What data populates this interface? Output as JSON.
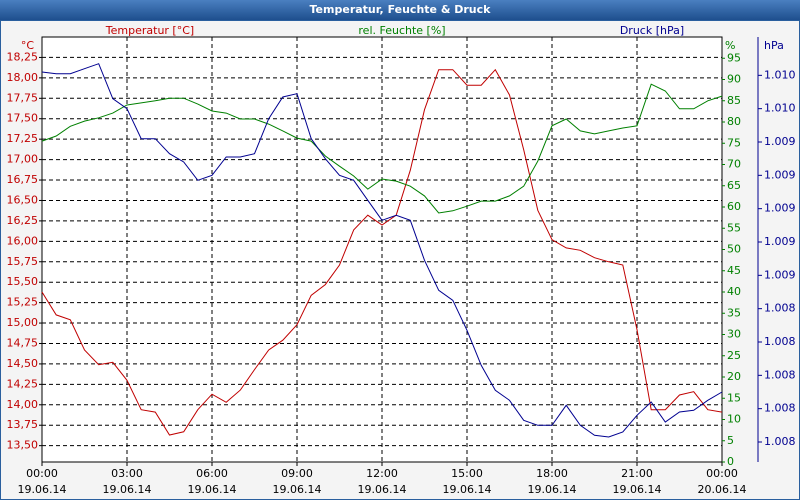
{
  "chart_data": {
    "type": "line",
    "title": "Temperatur, Feuchte & Druck",
    "y_unit": "°C",
    "y2_unit": "%",
    "y3_unit": "hPa",
    "grid": true,
    "x": [
      0,
      0.5,
      1,
      1.5,
      2,
      2.5,
      3,
      3.5,
      4,
      4.5,
      5,
      5.5,
      6,
      6.5,
      7,
      7.5,
      8,
      8.5,
      9,
      9.5,
      10,
      10.5,
      11,
      11.5,
      12,
      12.5,
      13,
      13.5,
      14,
      14.5,
      15,
      15.5,
      16,
      16.5,
      17,
      17.5,
      18,
      18.5,
      19,
      19.5,
      20,
      20.5,
      21,
      21.5,
      22,
      22.5,
      23,
      23.5,
      24
    ],
    "xlim": [
      0,
      24
    ],
    "xticks": [
      {
        "value": 0,
        "label": "00:00",
        "date": "19.06.14"
      },
      {
        "value": 3,
        "label": "03:00",
        "date": "19.06.14"
      },
      {
        "value": 6,
        "label": "06:00",
        "date": "19.06.14"
      },
      {
        "value": 9,
        "label": "09:00",
        "date": "19.06.14"
      },
      {
        "value": 12,
        "label": "12:00",
        "date": "19.06.14"
      },
      {
        "value": 15,
        "label": "15:00",
        "date": "19.06.14"
      },
      {
        "value": 18,
        "label": "18:00",
        "date": "19.06.14"
      },
      {
        "value": 21,
        "label": "21:00",
        "date": "19.06.14"
      },
      {
        "value": 24,
        "label": "00:00",
        "date": "20.06.14"
      }
    ],
    "ylim": [
      13.3,
      18.5
    ],
    "yticks": [
      {
        "value": 13.5,
        "label": "13,50"
      },
      {
        "value": 13.75,
        "label": "13,75"
      },
      {
        "value": 14,
        "label": "14,00"
      },
      {
        "value": 14.25,
        "label": "14,25"
      },
      {
        "value": 14.5,
        "label": "14,50"
      },
      {
        "value": 14.75,
        "label": "14,75"
      },
      {
        "value": 15,
        "label": "15,00"
      },
      {
        "value": 15.25,
        "label": "15,25"
      },
      {
        "value": 15.5,
        "label": "15,50"
      },
      {
        "value": 15.75,
        "label": "15,75"
      },
      {
        "value": 16,
        "label": "16,00"
      },
      {
        "value": 16.25,
        "label": "16,25"
      },
      {
        "value": 16.5,
        "label": "16,50"
      },
      {
        "value": 16.75,
        "label": "16,75"
      },
      {
        "value": 17,
        "label": "17,00"
      },
      {
        "value": 17.25,
        "label": "17,25"
      },
      {
        "value": 17.5,
        "label": "17,50"
      },
      {
        "value": 17.75,
        "label": "17,75"
      },
      {
        "value": 18,
        "label": "18,00"
      },
      {
        "value": 18.25,
        "label": "18,25"
      }
    ],
    "y2lim": [
      0,
      100
    ],
    "y2ticks": [
      0,
      5,
      10,
      15,
      20,
      25,
      30,
      35,
      40,
      45,
      50,
      55,
      60,
      65,
      70,
      75,
      80,
      85,
      90,
      95
    ],
    "y3lim": [
      1.00748,
      1.01003
    ],
    "y3ticks": [
      {
        "value": 1.0098,
        "label": "1.010"
      },
      {
        "value": 1.0096,
        "label": "1.010"
      },
      {
        "value": 1.0094,
        "label": "1.009"
      },
      {
        "value": 1.0092,
        "label": "1.009"
      },
      {
        "value": 1.009,
        "label": "1.009"
      },
      {
        "value": 1.0088,
        "label": "1.009"
      },
      {
        "value": 1.0086,
        "label": "1.009"
      },
      {
        "value": 1.0084,
        "label": "1.008"
      },
      {
        "value": 1.0082,
        "label": "1.008"
      },
      {
        "value": 1.008,
        "label": "1.008"
      },
      {
        "value": 1.0078,
        "label": "1.008"
      },
      {
        "value": 1.0076,
        "label": "1.008"
      }
    ],
    "series": [
      {
        "name": "Temperatur [°C]",
        "color": "#c00000",
        "axis": "y",
        "values": [
          15.38,
          15.1,
          15.04,
          14.67,
          14.49,
          14.52,
          14.3,
          13.94,
          13.91,
          13.63,
          13.67,
          13.94,
          14.13,
          14.03,
          14.18,
          14.43,
          14.67,
          14.79,
          14.98,
          15.34,
          15.47,
          15.71,
          16.14,
          16.32,
          16.2,
          16.32,
          16.87,
          17.61,
          18.1,
          18.1,
          17.91,
          17.91,
          18.1,
          17.79,
          17.12,
          16.38,
          16.02,
          15.92,
          15.89,
          15.8,
          15.75,
          15.71,
          14.92,
          13.94,
          13.94,
          14.12,
          14.16,
          13.94,
          13.91
        ]
      },
      {
        "name": "rel. Feuchte [%]",
        "color": "#008000",
        "axis": "y2",
        "values": [
          75.5,
          76.7,
          79,
          80.2,
          81,
          82.1,
          84,
          84.5,
          85,
          85.6,
          85.6,
          84.2,
          82.6,
          82.1,
          80.7,
          80.7,
          79.5,
          77.9,
          76.2,
          75.5,
          72,
          69.6,
          67.3,
          64.2,
          66.6,
          66.1,
          64.9,
          62.6,
          58.6,
          59.1,
          60.2,
          61.4,
          61.4,
          62.6,
          64.9,
          70.8,
          79.1,
          80.7,
          77.9,
          77.2,
          77.9,
          78.6,
          79.1,
          88.9,
          87.3,
          83.1,
          83.1,
          85,
          86.1
        ]
      },
      {
        "name": "Druck [hPa]",
        "color": "#000090",
        "axis": "y3",
        "values": [
          1.00982,
          1.00981,
          1.00981,
          1.00984,
          1.00987,
          1.00966,
          1.0096,
          1.00942,
          1.00942,
          1.00933,
          1.00928,
          1.00917,
          1.0092,
          1.00931,
          1.00931,
          1.00933,
          1.00954,
          1.00967,
          1.00969,
          1.00942,
          1.0093,
          1.0092,
          1.00917,
          1.00905,
          1.00893,
          1.00896,
          1.00893,
          1.00869,
          1.00851,
          1.00845,
          1.00827,
          1.00806,
          1.00791,
          1.00785,
          1.00773,
          1.0077,
          1.0077,
          1.00782,
          1.0077,
          1.00764,
          1.00763,
          1.00766,
          1.00776,
          1.00784,
          1.00772,
          1.00778,
          1.00779,
          1.00785,
          1.0079
        ]
      }
    ]
  }
}
